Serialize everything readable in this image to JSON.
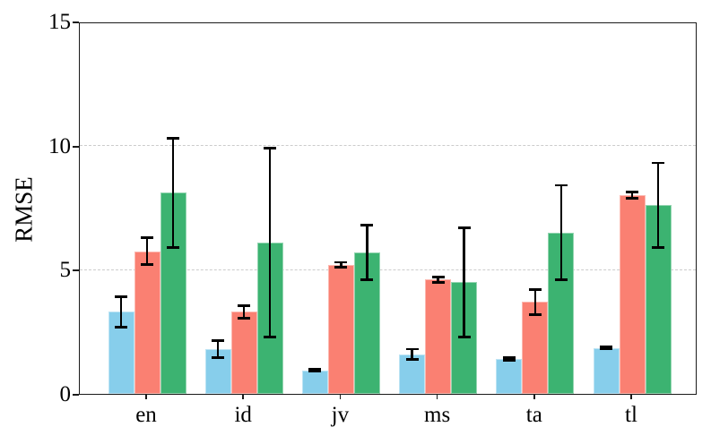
{
  "figure": {
    "background_color": "#ffffff",
    "axis_color": "#1a1a1a",
    "gridline_color": "#cccccc",
    "error_bar_color": "#000000"
  },
  "chart_data": {
    "type": "bar",
    "title": "",
    "xlabel": "",
    "ylabel": "RMSE",
    "ylim": [
      0,
      15
    ],
    "yticks": [
      "0",
      "5",
      "10",
      "15"
    ],
    "ytick_values": [
      0,
      5,
      10,
      15
    ],
    "gridline_values": [
      5,
      10
    ],
    "grid": "horizontal dashed at 5 and 10",
    "legend_position": "none",
    "categories": [
      "en",
      "id",
      "jv",
      "ms",
      "ta",
      "tl"
    ],
    "series": [
      {
        "name": "skyblue-series",
        "color": "#87CEEB",
        "values": [
          3.3,
          1.8,
          0.95,
          1.6,
          1.4,
          1.85
        ],
        "errors": [
          0.6,
          0.35,
          0.05,
          0.2,
          0.05,
          0.05
        ]
      },
      {
        "name": "salmon-series",
        "color": "#FA8072",
        "values": [
          5.75,
          3.3,
          5.2,
          4.6,
          3.7,
          8.0
        ],
        "errors": [
          0.55,
          0.25,
          0.1,
          0.1,
          0.5,
          0.12
        ]
      },
      {
        "name": "mediumseagreen-series",
        "color": "#3CB371",
        "values": [
          8.1,
          6.1,
          5.7,
          4.5,
          6.5,
          7.6
        ],
        "errors": [
          2.2,
          3.8,
          1.1,
          2.2,
          1.9,
          1.7
        ]
      }
    ]
  }
}
